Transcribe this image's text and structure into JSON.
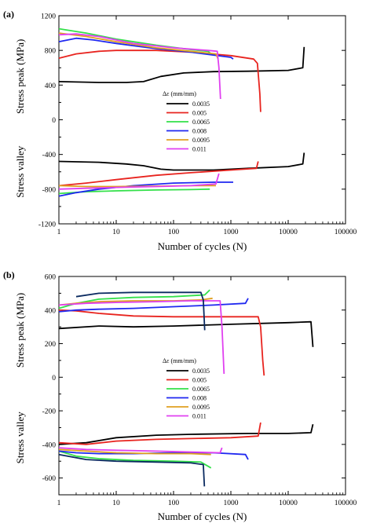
{
  "chart_data": [
    {
      "panel_label": "(a)",
      "type": "line",
      "x_scale": "log",
      "xlim": [
        1,
        100000
      ],
      "ylim": [
        -1200,
        1200
      ],
      "xlabel": "Number of cycles (N)",
      "ylabel_top": "Stress peak (MPa)",
      "ylabel_bottom": "Stress valley",
      "xticks": [
        1,
        10,
        100,
        1000,
        10000,
        100000
      ],
      "xtick_labels": [
        "1",
        "10",
        "100",
        "1000",
        "10000",
        "100000"
      ],
      "yticks": [
        -1200,
        -800,
        -400,
        0,
        400,
        800,
        1200
      ],
      "ytick_labels": [
        "-1200",
        "-800",
        "-400",
        "0",
        "400",
        "800",
        "1200"
      ],
      "legend": {
        "title": "Δε (mm/mm)",
        "position": "center-right",
        "entries": [
          "0.0035",
          "0.005",
          "0.0065",
          "0.008",
          "0.0095",
          "0.011"
        ]
      },
      "series": [
        {
          "name": "0.0035",
          "color": "#000000",
          "peak": [
            [
              1,
              440
            ],
            [
              5,
              430
            ],
            [
              15,
              430
            ],
            [
              30,
              440
            ],
            [
              60,
              500
            ],
            [
              150,
              540
            ],
            [
              500,
              555
            ],
            [
              2000,
              560
            ],
            [
              10000,
              570
            ],
            [
              18000,
              600
            ],
            [
              19000,
              840
            ]
          ],
          "valley": [
            [
              1,
              -480
            ],
            [
              5,
              -490
            ],
            [
              15,
              -510
            ],
            [
              30,
              -530
            ],
            [
              60,
              -570
            ],
            [
              100,
              -580
            ],
            [
              500,
              -580
            ],
            [
              2000,
              -560
            ],
            [
              10000,
              -540
            ],
            [
              18000,
              -510
            ],
            [
              19000,
              -380
            ]
          ]
        },
        {
          "name": "0.005",
          "color": "#e8241f",
          "peak": [
            [
              1,
              710
            ],
            [
              2,
              760
            ],
            [
              5,
              790
            ],
            [
              10,
              800
            ],
            [
              50,
              800
            ],
            [
              200,
              780
            ],
            [
              1000,
              740
            ],
            [
              2500,
              700
            ],
            [
              2900,
              650
            ],
            [
              3200,
              300
            ],
            [
              3300,
              90
            ]
          ],
          "valley": [
            [
              1,
              -760
            ],
            [
              3,
              -730
            ],
            [
              10,
              -690
            ],
            [
              50,
              -640
            ],
            [
              200,
              -610
            ],
            [
              1000,
              -580
            ],
            [
              2800,
              -560
            ],
            [
              3000,
              -480
            ]
          ]
        },
        {
          "name": "0.0065",
          "color": "#33e04a",
          "peak": [
            [
              1,
              1050
            ],
            [
              3,
              1000
            ],
            [
              10,
              930
            ],
            [
              50,
              860
            ],
            [
              200,
              810
            ],
            [
              400,
              790
            ],
            [
              450,
              760
            ]
          ],
          "valley": [
            [
              1,
              -850
            ],
            [
              3,
              -830
            ],
            [
              10,
              -820
            ],
            [
              50,
              -810
            ],
            [
              200,
              -805
            ],
            [
              430,
              -800
            ]
          ]
        },
        {
          "name": "0.008",
          "color": "#1f28f0",
          "peak": [
            [
              1,
              900
            ],
            [
              2,
              940
            ],
            [
              4,
              920
            ],
            [
              10,
              880
            ],
            [
              50,
              820
            ],
            [
              200,
              780
            ],
            [
              1000,
              720
            ],
            [
              1100,
              700
            ]
          ],
          "valley": [
            [
              1,
              -880
            ],
            [
              2,
              -840
            ],
            [
              5,
              -800
            ],
            [
              20,
              -760
            ],
            [
              100,
              -730
            ],
            [
              500,
              -720
            ],
            [
              1100,
              -720
            ]
          ]
        },
        {
          "name": "0.0095",
          "color": "#e0a020",
          "peak": [
            [
              1,
              1000
            ],
            [
              3,
              960
            ],
            [
              10,
              900
            ],
            [
              50,
              830
            ],
            [
              200,
              790
            ],
            [
              550,
              760
            ],
            [
              600,
              700
            ]
          ],
          "valley": [
            [
              1,
              -760
            ],
            [
              3,
              -770
            ],
            [
              10,
              -770
            ],
            [
              50,
              -765
            ],
            [
              200,
              -760
            ],
            [
              550,
              -760
            ]
          ]
        },
        {
          "name": "0.011",
          "color": "#e040f0",
          "peak": [
            [
              1,
              980
            ],
            [
              2,
              990
            ],
            [
              5,
              960
            ],
            [
              20,
              880
            ],
            [
              100,
              830
            ],
            [
              400,
              800
            ],
            [
              580,
              790
            ],
            [
              620,
              600
            ],
            [
              660,
              240
            ]
          ],
          "valley": [
            [
              1,
              -800
            ],
            [
              3,
              -790
            ],
            [
              10,
              -780
            ],
            [
              50,
              -770
            ],
            [
              200,
              -760
            ],
            [
              550,
              -740
            ],
            [
              620,
              -620
            ]
          ]
        }
      ]
    },
    {
      "panel_label": "(b)",
      "type": "line",
      "x_scale": "log",
      "xlim": [
        1,
        100000
      ],
      "ylim": [
        -700,
        600
      ],
      "xlabel": "Number of cycles (N)",
      "ylabel_top": "Stress peak (MPa)",
      "ylabel_bottom": "Stress valley",
      "xticks": [
        1,
        10,
        100,
        1000,
        10000,
        100000
      ],
      "xtick_labels": [
        "1",
        "10",
        "100",
        "1000",
        "10000",
        "100000"
      ],
      "yticks": [
        -600,
        -400,
        -200,
        0,
        200,
        400,
        600
      ],
      "ytick_labels": [
        "-600",
        "-400",
        "-200",
        "0",
        "200",
        "400",
        "600"
      ],
      "legend": {
        "title": "Δε (mm/mm)",
        "position": "center-right",
        "entries": [
          "0.0035",
          "0.005",
          "0.0065",
          "0.008",
          "0.0095",
          "0.011"
        ]
      },
      "series": [
        {
          "name": "0.0035",
          "color": "#000000",
          "peak": [
            [
              1,
              290
            ],
            [
              5,
              305
            ],
            [
              20,
              300
            ],
            [
              100,
              305
            ],
            [
              1000,
              315
            ],
            [
              10000,
              325
            ],
            [
              25000,
              330
            ],
            [
              27000,
              180
            ]
          ],
          "valley": [
            [
              1,
              -400
            ],
            [
              3,
              -390
            ],
            [
              10,
              -360
            ],
            [
              50,
              -345
            ],
            [
              200,
              -340
            ],
            [
              2000,
              -335
            ],
            [
              10000,
              -335
            ],
            [
              25000,
              -330
            ],
            [
              27000,
              -280
            ]
          ]
        },
        {
          "name": "0.005",
          "color": "#e8241f",
          "peak": [
            [
              1,
              400
            ],
            [
              2,
              395
            ],
            [
              5,
              380
            ],
            [
              20,
              365
            ],
            [
              100,
              360
            ],
            [
              1000,
              360
            ],
            [
              3000,
              360
            ],
            [
              3300,
              300
            ],
            [
              3600,
              100
            ],
            [
              3800,
              10
            ]
          ],
          "valley": [
            [
              1,
              -390
            ],
            [
              3,
              -400
            ],
            [
              10,
              -380
            ],
            [
              50,
              -370
            ],
            [
              200,
              -365
            ],
            [
              1000,
              -360
            ],
            [
              3000,
              -350
            ],
            [
              3300,
              -270
            ]
          ]
        },
        {
          "name": "0.0065",
          "color": "#33e04a",
          "peak": [
            [
              1,
              410
            ],
            [
              2,
              440
            ],
            [
              5,
              465
            ],
            [
              20,
              475
            ],
            [
              100,
              480
            ],
            [
              350,
              490
            ],
            [
              430,
              520
            ]
          ],
          "valley": [
            [
              1,
              -440
            ],
            [
              2,
              -470
            ],
            [
              5,
              -485
            ],
            [
              20,
              -495
            ],
            [
              100,
              -500
            ],
            [
              300,
              -505
            ],
            [
              450,
              -540
            ]
          ]
        },
        {
          "name": "0.008",
          "color": "#1f28f0",
          "peak": [
            [
              1,
              390
            ],
            [
              2,
              400
            ],
            [
              5,
              405
            ],
            [
              20,
              410
            ],
            [
              100,
              420
            ],
            [
              500,
              430
            ],
            [
              1800,
              440
            ],
            [
              2000,
              470
            ]
          ],
          "valley": [
            [
              1,
              -440
            ],
            [
              2,
              -450
            ],
            [
              5,
              -455
            ],
            [
              20,
              -455
            ],
            [
              100,
              -450
            ],
            [
              500,
              -450
            ],
            [
              1800,
              -460
            ],
            [
              2000,
              -490
            ]
          ]
        },
        {
          "name": "0.0095",
          "color": "#e0a020",
          "peak": [
            [
              1,
              430
            ],
            [
              2,
              440
            ],
            [
              5,
              450
            ],
            [
              20,
              455
            ],
            [
              100,
              455
            ],
            [
              300,
              460
            ],
            [
              480,
              470
            ]
          ],
          "valley": [
            [
              1,
              -430
            ],
            [
              3,
              -440
            ],
            [
              10,
              -450
            ],
            [
              50,
              -455
            ],
            [
              200,
              -455
            ],
            [
              450,
              -460
            ]
          ]
        },
        {
          "name": "0.011",
          "color": "#e040f0",
          "peak": [
            [
              1,
              430
            ],
            [
              3,
              440
            ],
            [
              10,
              445
            ],
            [
              50,
              450
            ],
            [
              200,
              455
            ],
            [
              650,
              455
            ],
            [
              700,
              300
            ],
            [
              760,
              20
            ]
          ],
          "valley": [
            [
              1,
              -420
            ],
            [
              3,
              -430
            ],
            [
              10,
              -435
            ],
            [
              50,
              -440
            ],
            [
              200,
              -445
            ],
            [
              650,
              -450
            ],
            [
              700,
              -420
            ]
          ]
        },
        {
          "name": "0.008-dark",
          "color": "#0a2a60",
          "peak": [
            [
              2,
              480
            ],
            [
              5,
              500
            ],
            [
              20,
              505
            ],
            [
              100,
              505
            ],
            [
              300,
              505
            ],
            [
              330,
              460
            ],
            [
              350,
              280
            ]
          ],
          "valley": [
            [
              1,
              -460
            ],
            [
              3,
              -490
            ],
            [
              10,
              -500
            ],
            [
              50,
              -505
            ],
            [
              200,
              -510
            ],
            [
              330,
              -520
            ],
            [
              345,
              -650
            ]
          ]
        }
      ]
    }
  ]
}
